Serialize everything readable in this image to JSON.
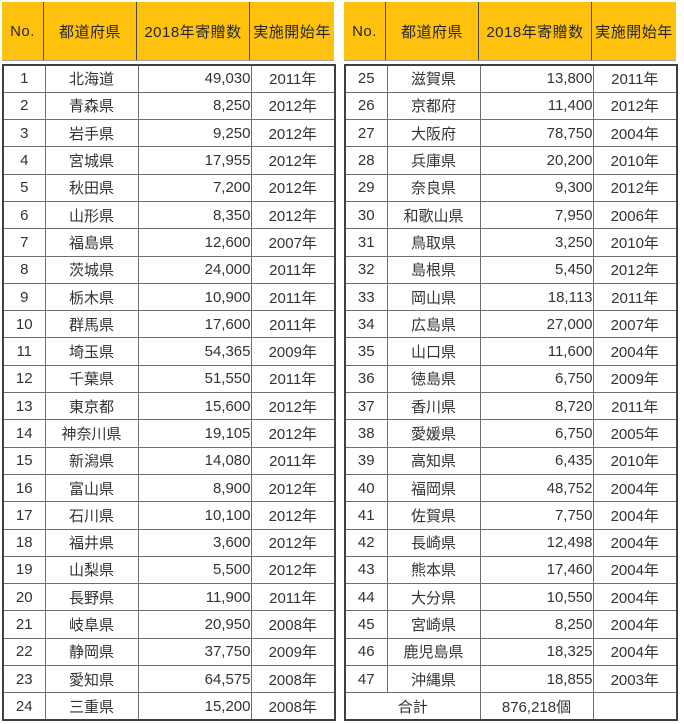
{
  "columns": [
    "No.",
    "都道府県",
    "2018年寄贈数",
    "実施開始年"
  ],
  "left_table": {
    "rows": [
      {
        "no": "1",
        "pref": "北海道",
        "count": "49,030",
        "year": "2011年"
      },
      {
        "no": "2",
        "pref": "青森県",
        "count": "8,250",
        "year": "2012年"
      },
      {
        "no": "3",
        "pref": "岩手県",
        "count": "9,250",
        "year": "2012年"
      },
      {
        "no": "4",
        "pref": "宮城県",
        "count": "17,955",
        "year": "2012年"
      },
      {
        "no": "5",
        "pref": "秋田県",
        "count": "7,200",
        "year": "2012年"
      },
      {
        "no": "6",
        "pref": "山形県",
        "count": "8,350",
        "year": "2012年"
      },
      {
        "no": "7",
        "pref": "福島県",
        "count": "12,600",
        "year": "2007年"
      },
      {
        "no": "8",
        "pref": "茨城県",
        "count": "24,000",
        "year": "2011年"
      },
      {
        "no": "9",
        "pref": "栃木県",
        "count": "10,900",
        "year": "2011年"
      },
      {
        "no": "10",
        "pref": "群馬県",
        "count": "17,600",
        "year": "2011年"
      },
      {
        "no": "11",
        "pref": "埼玉県",
        "count": "54,365",
        "year": "2009年"
      },
      {
        "no": "12",
        "pref": "千葉県",
        "count": "51,550",
        "year": "2011年"
      },
      {
        "no": "13",
        "pref": "東京都",
        "count": "15,600",
        "year": "2012年"
      },
      {
        "no": "14",
        "pref": "神奈川県",
        "count": "19,105",
        "year": "2012年"
      },
      {
        "no": "15",
        "pref": "新潟県",
        "count": "14,080",
        "year": "2011年"
      },
      {
        "no": "16",
        "pref": "富山県",
        "count": "8,900",
        "year": "2012年"
      },
      {
        "no": "17",
        "pref": "石川県",
        "count": "10,100",
        "year": "2012年"
      },
      {
        "no": "18",
        "pref": "福井県",
        "count": "3,600",
        "year": "2012年"
      },
      {
        "no": "19",
        "pref": "山梨県",
        "count": "5,500",
        "year": "2012年"
      },
      {
        "no": "20",
        "pref": "長野県",
        "count": "11,900",
        "year": "2011年"
      },
      {
        "no": "21",
        "pref": "岐阜県",
        "count": "20,950",
        "year": "2008年"
      },
      {
        "no": "22",
        "pref": "静岡県",
        "count": "37,750",
        "year": "2009年"
      },
      {
        "no": "23",
        "pref": "愛知県",
        "count": "64,575",
        "year": "2008年"
      },
      {
        "no": "24",
        "pref": "三重県",
        "count": "15,200",
        "year": "2008年"
      }
    ]
  },
  "right_table": {
    "rows": [
      {
        "no": "25",
        "pref": "滋賀県",
        "count": "13,800",
        "year": "2011年"
      },
      {
        "no": "26",
        "pref": "京都府",
        "count": "11,400",
        "year": "2012年"
      },
      {
        "no": "27",
        "pref": "大阪府",
        "count": "78,750",
        "year": "2004年"
      },
      {
        "no": "28",
        "pref": "兵庫県",
        "count": "20,200",
        "year": "2010年"
      },
      {
        "no": "29",
        "pref": "奈良県",
        "count": "9,300",
        "year": "2012年"
      },
      {
        "no": "30",
        "pref": "和歌山県",
        "count": "7,950",
        "year": "2006年"
      },
      {
        "no": "31",
        "pref": "鳥取県",
        "count": "3,250",
        "year": "2010年"
      },
      {
        "no": "32",
        "pref": "島根県",
        "count": "5,450",
        "year": "2012年"
      },
      {
        "no": "33",
        "pref": "岡山県",
        "count": "18,113",
        "year": "2011年"
      },
      {
        "no": "34",
        "pref": "広島県",
        "count": "27,000",
        "year": "2007年"
      },
      {
        "no": "35",
        "pref": "山口県",
        "count": "11,600",
        "year": "2004年"
      },
      {
        "no": "36",
        "pref": "徳島県",
        "count": "6,750",
        "year": "2009年"
      },
      {
        "no": "37",
        "pref": "香川県",
        "count": "8,720",
        "year": "2011年"
      },
      {
        "no": "38",
        "pref": "愛媛県",
        "count": "6,750",
        "year": "2005年"
      },
      {
        "no": "39",
        "pref": "高知県",
        "count": "6,435",
        "year": "2010年"
      },
      {
        "no": "40",
        "pref": "福岡県",
        "count": "48,752",
        "year": "2004年"
      },
      {
        "no": "41",
        "pref": "佐賀県",
        "count": "7,750",
        "year": "2004年"
      },
      {
        "no": "42",
        "pref": "長崎県",
        "count": "12,498",
        "year": "2004年"
      },
      {
        "no": "43",
        "pref": "熊本県",
        "count": "17,460",
        "year": "2004年"
      },
      {
        "no": "44",
        "pref": "大分県",
        "count": "10,550",
        "year": "2004年"
      },
      {
        "no": "45",
        "pref": "宮崎県",
        "count": "8,250",
        "year": "2004年"
      },
      {
        "no": "46",
        "pref": "鹿児島県",
        "count": "18,325",
        "year": "2004年"
      },
      {
        "no": "47",
        "pref": "沖縄県",
        "count": "18,855",
        "year": "2003年"
      }
    ],
    "total": {
      "label": "合計",
      "value": "876,218個"
    }
  },
  "colors": {
    "header_bg": "#FEC10D",
    "header_separator": "#4A4A4A",
    "body_border": "#6F6F6F",
    "outer_border": "#3F3F3F",
    "text": "#333333"
  }
}
